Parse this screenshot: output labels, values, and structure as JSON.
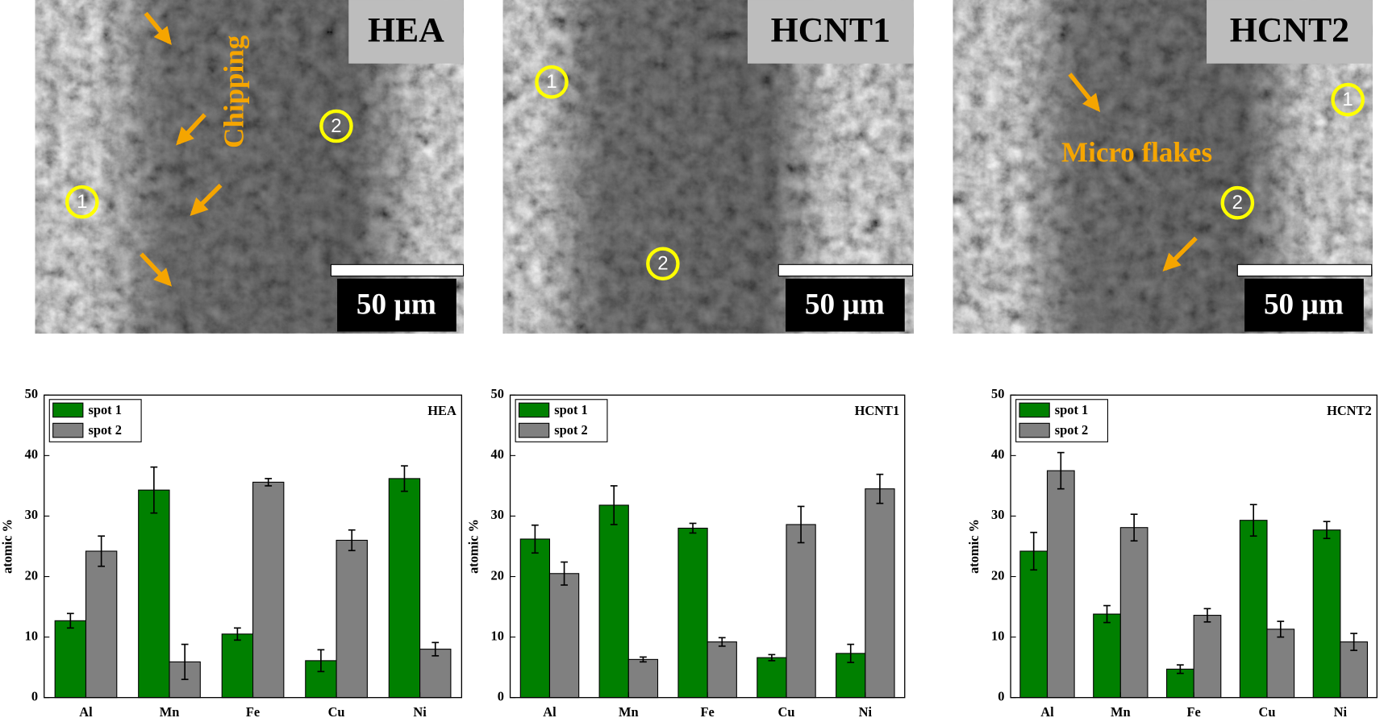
{
  "micrographs": [
    {
      "label": "HEA",
      "scale_bar": "50 µm",
      "annotation": "Chipping",
      "spots": [
        "1",
        "2"
      ]
    },
    {
      "label": "HCNT1",
      "scale_bar": "50 µm",
      "spots": [
        "1",
        "2"
      ]
    },
    {
      "label": "HCNT2",
      "scale_bar": "50 µm",
      "annotation": "Micro flakes",
      "spots": [
        "1",
        "2"
      ]
    }
  ],
  "chart_data": [
    {
      "type": "bar",
      "title": "HEA",
      "ylabel": "atomic %",
      "categories": [
        "Al",
        "Mn",
        "Fe",
        "Cu",
        "Ni"
      ],
      "series": [
        {
          "name": "spot 1",
          "color": "#008000",
          "values": [
            12.7,
            34.3,
            10.5,
            6.1,
            36.2
          ],
          "errors": [
            1.2,
            3.8,
            1.0,
            1.8,
            2.1
          ]
        },
        {
          "name": "spot 2",
          "color": "#808080",
          "values": [
            24.2,
            5.9,
            35.6,
            26.0,
            8.0
          ],
          "errors": [
            2.5,
            2.9,
            0.6,
            1.7,
            1.1
          ]
        }
      ],
      "ylim": [
        0,
        50
      ],
      "yticks": [
        0,
        10,
        20,
        30,
        40,
        50
      ],
      "legend": "upper left"
    },
    {
      "type": "bar",
      "title": "HCNT1",
      "ylabel": "atomic %",
      "categories": [
        "Al",
        "Mn",
        "Fe",
        "Cu",
        "Ni"
      ],
      "series": [
        {
          "name": "spot 1",
          "color": "#008000",
          "values": [
            26.2,
            31.8,
            28.0,
            6.6,
            7.3
          ],
          "errors": [
            2.3,
            3.2,
            0.8,
            0.5,
            1.5
          ]
        },
        {
          "name": "spot 2",
          "color": "#808080",
          "values": [
            20.5,
            6.3,
            9.2,
            28.6,
            34.5
          ],
          "errors": [
            1.9,
            0.4,
            0.7,
            3.0,
            2.4
          ]
        }
      ],
      "ylim": [
        0,
        50
      ],
      "yticks": [
        0,
        10,
        20,
        30,
        40,
        50
      ],
      "legend": "upper left"
    },
    {
      "type": "bar",
      "title": "HCNT2",
      "ylabel": "atomic %",
      "categories": [
        "Al",
        "Mn",
        "Fe",
        "Cu",
        "Ni"
      ],
      "series": [
        {
          "name": "spot 1",
          "color": "#008000",
          "values": [
            24.2,
            13.8,
            4.7,
            29.3,
            27.7
          ],
          "errors": [
            3.1,
            1.4,
            0.7,
            2.6,
            1.4
          ]
        },
        {
          "name": "spot 2",
          "color": "#808080",
          "values": [
            37.5,
            28.1,
            13.6,
            11.3,
            9.2
          ],
          "errors": [
            3.0,
            2.2,
            1.1,
            1.3,
            1.4
          ]
        }
      ],
      "ylim": [
        0,
        50
      ],
      "yticks": [
        0,
        10,
        20,
        30,
        40,
        50
      ],
      "legend": "upper left"
    }
  ]
}
